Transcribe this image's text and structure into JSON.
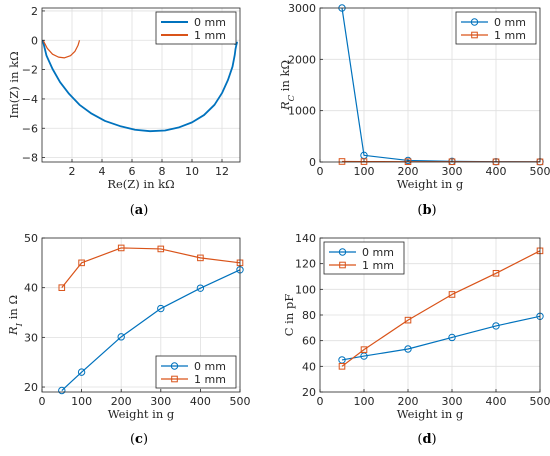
{
  "colors": {
    "series0": "#0072BD",
    "series1": "#D95319",
    "grid": "#dfdfdf",
    "axis": "#262626"
  },
  "chart_data": [
    {
      "caption": "(a)",
      "type": "line",
      "xlabel": "Re(Z) in kΩ",
      "ylabel": "Im(Z) in kΩ",
      "xlim": [
        0,
        13.2
      ],
      "ylim": [
        -8.3,
        2.2
      ],
      "xticks": [
        2,
        4,
        6,
        8,
        10,
        12
      ],
      "yticks": [
        -8,
        -6,
        -4,
        -2,
        0,
        2
      ],
      "grid": true,
      "legend_position": "top-right",
      "legend_markers": false,
      "series": [
        {
          "name": "0 mm",
          "x": [
            0.05,
            0.3,
            0.7,
            1.2,
            1.8,
            2.5,
            3.3,
            4.2,
            5.2,
            6.2,
            7.2,
            8.2,
            9.1,
            10.0,
            10.8,
            11.5,
            12.0,
            12.4,
            12.7,
            12.85,
            12.9,
            12.95,
            13.0,
            12.9,
            12.8,
            12.7,
            12.8,
            12.9
          ],
          "y": [
            0.0,
            -1.05,
            -1.95,
            -2.85,
            -3.65,
            -4.4,
            -5.0,
            -5.5,
            -5.85,
            -6.1,
            -6.2,
            -6.15,
            -5.95,
            -5.6,
            -5.1,
            -4.4,
            -3.6,
            -2.7,
            -1.8,
            -1.0,
            -0.6,
            -0.35,
            -0.15,
            -0.25,
            -0.05,
            -0.2,
            -0.1,
            -0.3
          ]
        },
        {
          "name": "1 mm",
          "x": [
            0.1,
            0.35,
            0.7,
            1.1,
            1.5,
            1.9,
            2.2,
            2.4,
            2.5
          ],
          "y": [
            -0.05,
            -0.55,
            -0.95,
            -1.15,
            -1.2,
            -1.05,
            -0.75,
            -0.35,
            0.0
          ]
        }
      ]
    },
    {
      "caption": "(b)",
      "type": "line",
      "xlabel": "Weight in g",
      "ylabel": "R_C in kΩ",
      "xlim": [
        0,
        500
      ],
      "ylim": [
        0,
        3000
      ],
      "xticks": [
        0,
        100,
        200,
        300,
        400,
        500
      ],
      "yticks": [
        0,
        1000,
        2000,
        3000
      ],
      "grid": true,
      "legend_position": "top-right",
      "legend_markers": true,
      "categories": [
        50,
        100,
        200,
        300,
        400,
        500
      ],
      "series": [
        {
          "name": "0 mm",
          "marker": "circle",
          "values": [
            3000,
            130,
            30,
            12,
            6,
            4
          ]
        },
        {
          "name": "1 mm",
          "marker": "square",
          "values": [
            10,
            8,
            6,
            5,
            4,
            3
          ]
        }
      ]
    },
    {
      "caption": "(c)",
      "type": "line",
      "xlabel": "Weight in g",
      "ylabel": "R_I in Ω",
      "xlim": [
        0,
        500
      ],
      "ylim": [
        19,
        50
      ],
      "xticks": [
        0,
        100,
        200,
        300,
        400,
        500
      ],
      "yticks": [
        20,
        30,
        40,
        50
      ],
      "grid": true,
      "legend_position": "bottom-right",
      "legend_markers": true,
      "categories": [
        50,
        100,
        200,
        300,
        400,
        500
      ],
      "series": [
        {
          "name": "0 mm",
          "marker": "circle",
          "values": [
            19.3,
            23.0,
            30.1,
            35.8,
            39.9,
            43.6
          ]
        },
        {
          "name": "1 mm",
          "marker": "square",
          "values": [
            40.0,
            45.0,
            48.0,
            47.8,
            46.0,
            45.0
          ]
        }
      ]
    },
    {
      "caption": "(d)",
      "type": "line",
      "xlabel": "Weight in g",
      "ylabel": "C in pF",
      "xlim": [
        0,
        500
      ],
      "ylim": [
        20,
        140
      ],
      "xticks": [
        0,
        100,
        200,
        300,
        400,
        500
      ],
      "yticks": [
        20,
        40,
        60,
        80,
        100,
        120,
        140
      ],
      "grid": true,
      "legend_position": "top-left",
      "legend_markers": true,
      "categories": [
        50,
        100,
        200,
        300,
        400,
        500
      ],
      "series": [
        {
          "name": "0 mm",
          "marker": "circle",
          "values": [
            45,
            48,
            53.5,
            62.5,
            71.5,
            79
          ]
        },
        {
          "name": "1 mm",
          "marker": "square",
          "values": [
            40,
            53,
            76,
            96,
            112.5,
            130
          ]
        }
      ]
    }
  ]
}
